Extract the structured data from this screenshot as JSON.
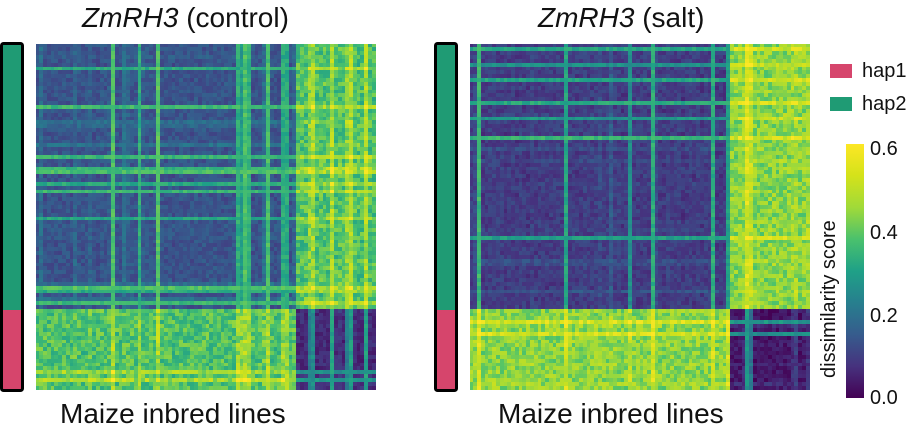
{
  "titles": {
    "left": {
      "gene": "ZmRH3",
      "condition": "(control)"
    },
    "right": {
      "gene": "ZmRH3",
      "condition": "(salt)"
    }
  },
  "xlabels": {
    "left": "Maize inbred lines",
    "right": "Maize inbred lines"
  },
  "legend": {
    "items": [
      {
        "label": "hap1",
        "color": "#d6456c"
      },
      {
        "label": "hap2",
        "color": "#1f9b74"
      }
    ]
  },
  "colorbar": {
    "title": "dissimilarity score",
    "ticks": [
      "0.6",
      "0.4",
      "0.2",
      "0.0"
    ]
  },
  "chart_data": [
    {
      "type": "heatmap",
      "title": "ZmRH3 (control)",
      "xlabel": "Maize inbred lines",
      "colormap": "viridis",
      "value_range": [
        0.0,
        0.6
      ],
      "groups": [
        {
          "name": "hap2",
          "fraction": 0.77
        },
        {
          "name": "hap1",
          "fraction": 0.23
        }
      ],
      "n_lines": 90,
      "block_means": {
        "within_hap2": 0.14,
        "within_hap1": 0.07,
        "between": 0.38
      }
    },
    {
      "type": "heatmap",
      "title": "ZmRH3 (salt)",
      "xlabel": "Maize inbred lines",
      "colormap": "viridis",
      "value_range": [
        0.0,
        0.6
      ],
      "groups": [
        {
          "name": "hap2",
          "fraction": 0.77
        },
        {
          "name": "hap1",
          "fraction": 0.23
        }
      ],
      "n_lines": 90,
      "block_means": {
        "within_hap2": 0.1,
        "within_hap1": 0.04,
        "between": 0.44
      }
    }
  ]
}
